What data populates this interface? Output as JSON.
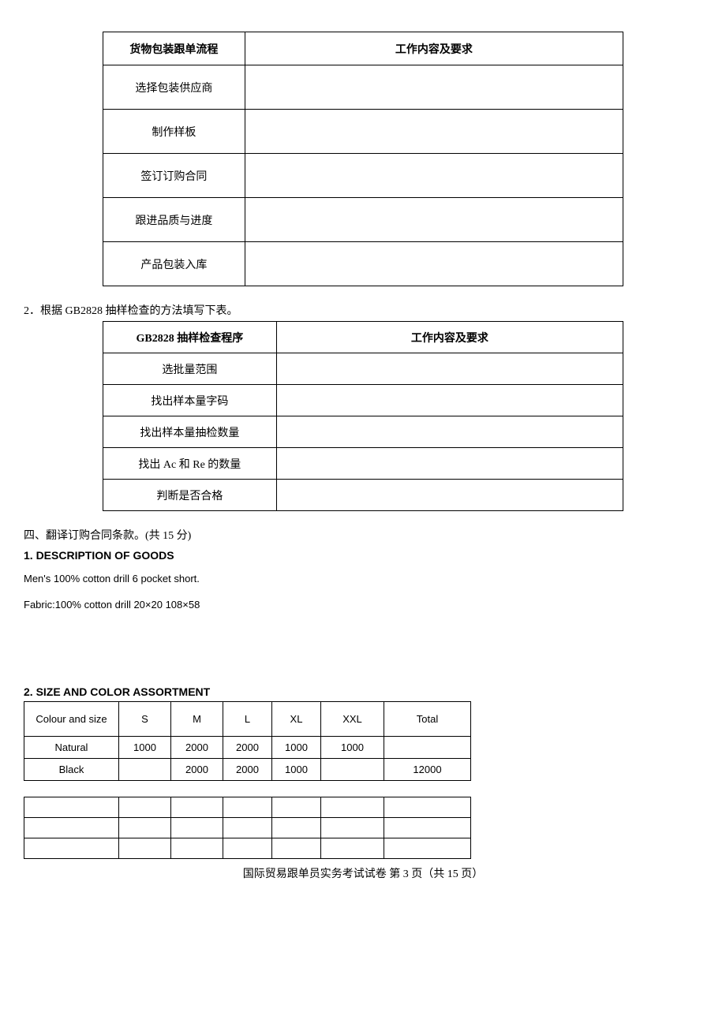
{
  "table1": {
    "header1": "货物包装跟单流程",
    "header2": "工作内容及要求",
    "rows": [
      "选择包装供应商",
      "制作样板",
      "签订订购合同",
      "跟进品质与进度",
      "产品包装入库"
    ]
  },
  "q2_text": "2．根据 GB2828 抽样检查的方法填写下表。",
  "table2": {
    "header1": "GB2828 抽样检查程序",
    "header2": "工作内容及要求",
    "rows": [
      "选批量范围",
      "找出样本量字码",
      "找出样本量抽检数量",
      "找出 Ac 和 Re 的数量",
      "判断是否合格"
    ]
  },
  "section4_title": "四、翻译订购合同条款。(共 15 分)",
  "desc_title": "1. DESCRIPTION OF GOODS",
  "desc_lines": [
    "Men's 100% cotton drill 6 pocket short.",
    "Fabric:100% cotton drill 20×20 108×58"
  ],
  "size_title": "2. SIZE AND COLOR ASSORTMENT",
  "table3": {
    "headers": [
      "Colour and size",
      "S",
      "M",
      "L",
      "XL",
      "XXL",
      "Total"
    ],
    "rows": [
      [
        "Natural",
        "1000",
        "2000",
        "2000",
        "1000",
        "1000",
        ""
      ],
      [
        "Black",
        "",
        "2000",
        "2000",
        "1000",
        "",
        "12000"
      ]
    ]
  },
  "footer": "国际贸易跟单员实务考试试卷 第 3 页（共 15 页）"
}
